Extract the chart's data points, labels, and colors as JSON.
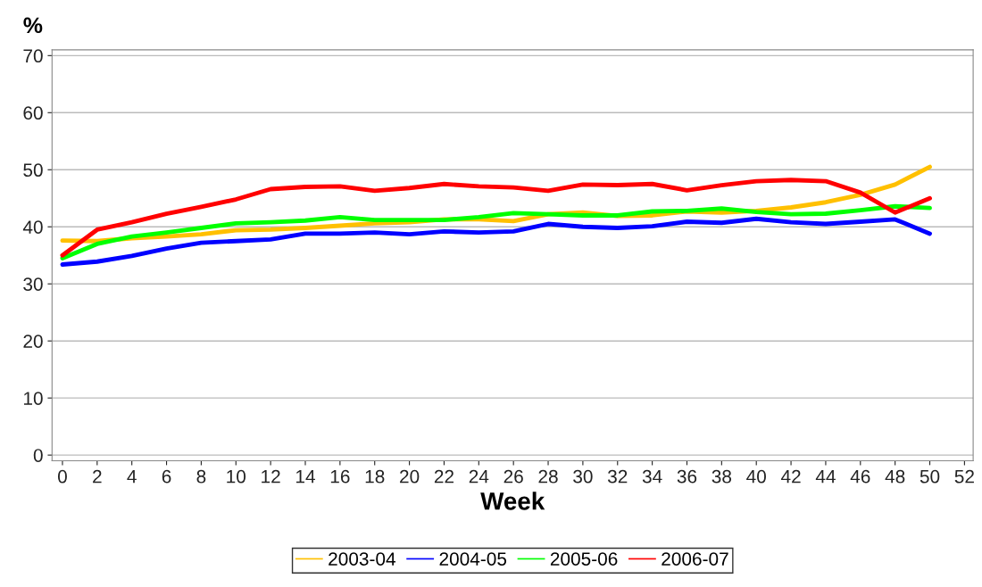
{
  "chart_data": {
    "type": "line",
    "xlabel": "Week",
    "ylabel": "%",
    "x": [
      0,
      2,
      4,
      6,
      8,
      10,
      12,
      14,
      16,
      18,
      20,
      22,
      24,
      26,
      28,
      30,
      32,
      34,
      36,
      38,
      40,
      42,
      44,
      46,
      48,
      50
    ],
    "series": [
      {
        "name": "2003-04",
        "color": "#ffc000",
        "values": [
          37.6,
          37.5,
          38,
          38.3,
          38.7,
          39.4,
          39.5,
          39.8,
          40.2,
          40.6,
          40.8,
          41.3,
          41.3,
          41,
          42.2,
          42.5,
          41.9,
          42,
          42.7,
          42.5,
          42.8,
          43.4,
          44.3,
          45.6,
          47.4,
          50.5
        ]
      },
      {
        "name": "2004-05",
        "color": "#0000ff",
        "values": [
          33.4,
          33.9,
          34.9,
          36.2,
          37.2,
          37.5,
          37.8,
          38.8,
          38.8,
          39,
          38.7,
          39.2,
          39,
          39.2,
          40.5,
          40,
          39.8,
          40.1,
          40.9,
          40.7,
          41.4,
          40.8,
          40.5,
          40.9,
          41.3,
          38.8
        ]
      },
      {
        "name": "2005-06",
        "color": "#00ff00",
        "values": [
          34.5,
          37,
          38.3,
          39,
          39.8,
          40.6,
          40.8,
          41.1,
          41.7,
          41.2,
          41.2,
          41.2,
          41.7,
          42.4,
          42.2,
          42,
          42,
          42.7,
          42.8,
          43.2,
          42.6,
          42.2,
          42.3,
          42.9,
          43.6,
          43.3
        ]
      },
      {
        "name": "2006-07",
        "color": "#ff0000",
        "values": [
          35,
          39.5,
          40.8,
          42.3,
          43.5,
          44.8,
          46.6,
          47,
          47.1,
          46.3,
          46.8,
          47.5,
          47.1,
          46.9,
          46.3,
          47.4,
          47.3,
          47.5,
          46.4,
          47.3,
          48,
          48.2,
          48,
          46,
          42.5,
          45
        ]
      }
    ],
    "xlim": [
      -0.6,
      52.5
    ],
    "xticks": [
      0,
      2,
      4,
      6,
      8,
      10,
      12,
      14,
      16,
      18,
      20,
      22,
      24,
      26,
      28,
      30,
      32,
      34,
      36,
      38,
      40,
      42,
      44,
      46,
      48,
      50,
      52
    ],
    "ylim": [
      -1,
      71
    ],
    "yticks": [
      0,
      10,
      20,
      30,
      40,
      50,
      60,
      70
    ],
    "grid": "y",
    "legend": "bottom",
    "marker": "none",
    "line_style": "solid"
  }
}
